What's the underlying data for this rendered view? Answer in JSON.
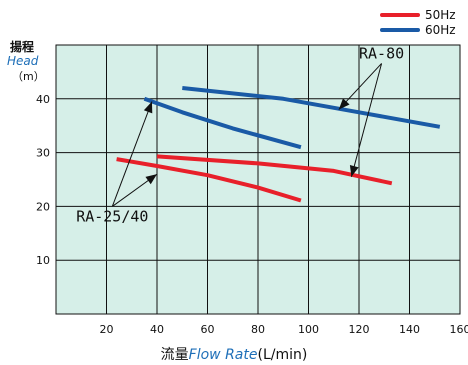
{
  "chart_data": {
    "type": "line",
    "y_title_ja": "揚程",
    "y_title_en": "Head",
    "y_unit": "（m）",
    "x_title_ja": "流量",
    "x_title_en": "Flow Rate",
    "x_unit": "(L/min)",
    "xlim": [
      0,
      160
    ],
    "ylim": [
      0,
      50
    ],
    "x_ticks": [
      20,
      40,
      60,
      80,
      100,
      120,
      140,
      160
    ],
    "y_ticks": [
      10,
      20,
      30,
      40
    ],
    "grid": true,
    "legend_position": "top-right",
    "legend": [
      {
        "label": "50Hz",
        "color": "#e8202a"
      },
      {
        "label": "60Hz",
        "color": "#1a5aa6"
      }
    ],
    "series": [
      {
        "model": "RA-25/40",
        "freq": "50Hz",
        "color": "#e8202a",
        "points": [
          [
            24,
            28.8
          ],
          [
            40,
            27.5
          ],
          [
            60,
            25.8
          ],
          [
            80,
            23.5
          ],
          [
            97,
            21.1
          ]
        ]
      },
      {
        "model": "RA-25/40",
        "freq": "60Hz",
        "color": "#1a5aa6",
        "points": [
          [
            35,
            40.0
          ],
          [
            50,
            37.5
          ],
          [
            70,
            34.5
          ],
          [
            97,
            31.0
          ]
        ]
      },
      {
        "model": "RA-80",
        "freq": "50Hz",
        "color": "#e8202a",
        "points": [
          [
            40,
            29.3
          ],
          [
            80,
            28.0
          ],
          [
            110,
            26.6
          ],
          [
            133,
            24.3
          ]
        ]
      },
      {
        "model": "RA-80",
        "freq": "60Hz",
        "color": "#1a5aa6",
        "points": [
          [
            50,
            42.0
          ],
          [
            90,
            40.0
          ],
          [
            120,
            37.5
          ],
          [
            152,
            34.8
          ]
        ]
      }
    ],
    "annotations": [
      {
        "label": "RA-25/40",
        "anchor": [
          8,
          17.2
        ],
        "targets": [
          [
            40,
            26
          ],
          [
            38,
            39.5
          ]
        ]
      },
      {
        "label": "RA-80",
        "anchor": [
          120,
          47.5
        ],
        "targets": [
          [
            112,
            38
          ],
          [
            117,
            25.5
          ]
        ]
      }
    ]
  }
}
